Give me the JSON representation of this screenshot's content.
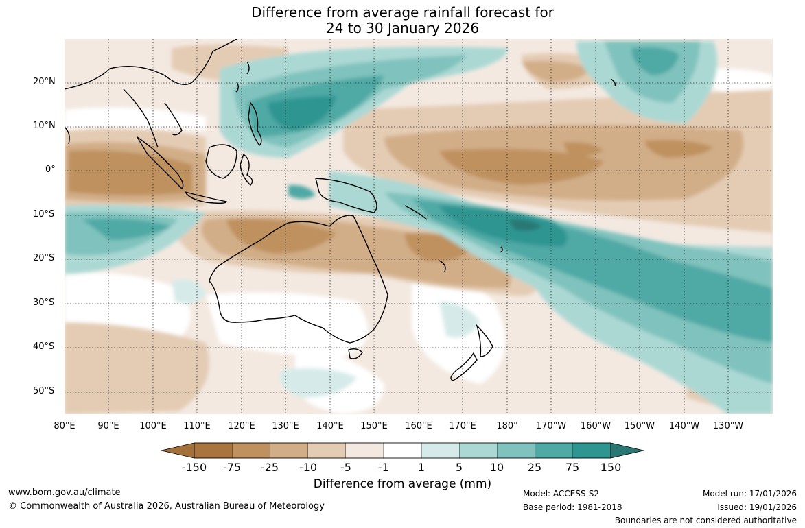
{
  "title": {
    "line1": "Difference from average rainfall forecast for",
    "line2": "24 to 30 January 2026"
  },
  "map": {
    "latitude_labels": [
      "20°N",
      "10°N",
      "0°",
      "10°S",
      "20°S",
      "30°S",
      "40°S",
      "50°S"
    ],
    "longitude_labels": [
      "80°E",
      "90°E",
      "100°E",
      "110°E",
      "120°E",
      "130°E",
      "140°E",
      "150°E",
      "160°E",
      "170°E",
      "180°",
      "170°W",
      "160°W",
      "150°W",
      "140°W",
      "130°W"
    ],
    "gridlines": true,
    "gridline_style": "dotted"
  },
  "legend": {
    "title": "Difference from average (mm)",
    "labels": [
      "-150",
      "-75",
      "-25",
      "-10",
      "-5",
      "-1",
      "1",
      "5",
      "10",
      "25",
      "75",
      "150"
    ],
    "colors": [
      "#a9743e",
      "#bf915f",
      "#d1ae88",
      "#e4ccb4",
      "#f3e9e1",
      "#ffffff",
      "#d6ebe9",
      "#acd8d4",
      "#80c2bd",
      "#4fa9a5",
      "#2f9591",
      "#2a7874"
    ],
    "arrow_colors": {
      "dry": "#a4703a",
      "wet": "#2a7874"
    }
  },
  "footer": {
    "website": "www.bom.gov.au/climate",
    "copyright": "© Commonwealth of Australia 2026, Australian Bureau of Meteorology",
    "model": "Model: ACCESS-S2",
    "base_period": "Base period: 1981-2018",
    "model_run": "Model run: 17/01/2026",
    "issued": "Issued: 19/01/2026",
    "disclaimer": "Boundaries are not considered authoritative"
  }
}
